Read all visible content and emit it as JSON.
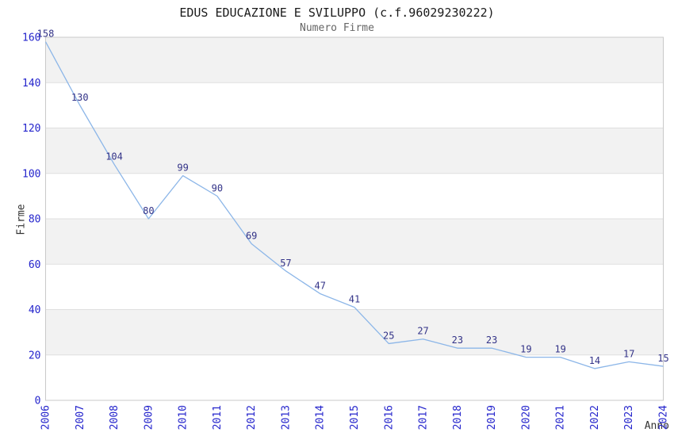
{
  "chart": {
    "title": "EDUS EDUCAZIONE E SVILUPPO (c.f.96029230222)",
    "subtitle": "Numero Firme"
  },
  "chart_data": {
    "type": "line",
    "title": "EDUS EDUCAZIONE E SVILUPPO (c.f.96029230222)",
    "subtitle": "Numero Firme",
    "xlabel": "Anno",
    "ylabel": "Firme",
    "categories": [
      "2006",
      "2007",
      "2008",
      "2009",
      "2010",
      "2011",
      "2012",
      "2013",
      "2014",
      "2015",
      "2016",
      "2017",
      "2018",
      "2019",
      "2020",
      "2021",
      "2022",
      "2023",
      "2024"
    ],
    "values": [
      158,
      130,
      104,
      80,
      99,
      90,
      69,
      57,
      47,
      41,
      25,
      27,
      23,
      23,
      19,
      19,
      14,
      17,
      15
    ],
    "ylim": [
      0,
      160
    ],
    "ytick_step": 20,
    "yticks": [
      0,
      20,
      40,
      60,
      80,
      100,
      120,
      140,
      160
    ],
    "grid": "horizontal",
    "legend": "none",
    "band_pattern": "alternating-gray-from-top",
    "data_labels": "shown-above-points",
    "colors": {
      "line": "#8cb6e8",
      "data_label": "#333388",
      "tick_label": "#2424cc",
      "band": "#f2f2f2",
      "gridline": "#dfdfdf",
      "border": "#c9c9c9",
      "title": "#1a1a1a",
      "subtitle": "#666666",
      "axis_label": "#333333",
      "background": "#ffffff"
    }
  }
}
